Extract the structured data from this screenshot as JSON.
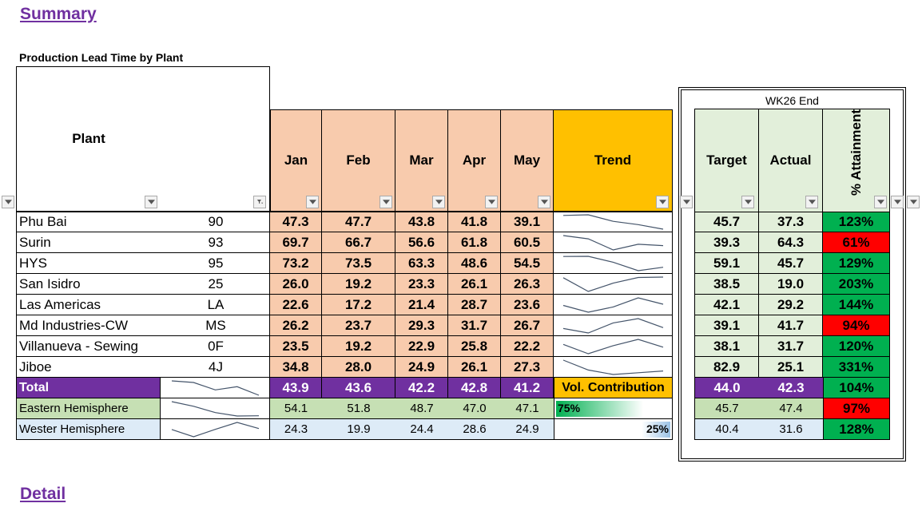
{
  "summary_heading": "Summary",
  "detail_heading": "Detail",
  "table_title": "Production Lead Time by Plant",
  "headers": {
    "plant": "Plant",
    "months": [
      "Jan",
      "Feb",
      "Mar",
      "Apr",
      "May"
    ],
    "trend": "Trend",
    "group": "WK26 End",
    "target": "Target",
    "actual": "Actual",
    "attainment": "% Attainment"
  },
  "rows": [
    {
      "plant": "Phu Bai",
      "code": "90",
      "values": [
        "47.3",
        "47.7",
        "43.8",
        "41.8",
        "39.1"
      ],
      "target": "45.7",
      "actual": "37.3",
      "attainment": "123%",
      "status": "good"
    },
    {
      "plant": "Surin",
      "code": "93",
      "values": [
        "69.7",
        "66.7",
        "56.6",
        "61.8",
        "60.5"
      ],
      "target": "39.3",
      "actual": "64.3",
      "attainment": "61%",
      "status": "bad"
    },
    {
      "plant": "HYS",
      "code": "95",
      "values": [
        "73.2",
        "73.5",
        "63.3",
        "48.6",
        "54.5"
      ],
      "target": "59.1",
      "actual": "45.7",
      "attainment": "129%",
      "status": "good"
    },
    {
      "plant": "San Isidro",
      "code": "25",
      "values": [
        "26.0",
        "19.2",
        "23.3",
        "26.1",
        "26.3"
      ],
      "target": "38.5",
      "actual": "19.0",
      "attainment": "203%",
      "status": "good"
    },
    {
      "plant": "Las Americas",
      "code": "LA",
      "values": [
        "22.6",
        "17.2",
        "21.4",
        "28.7",
        "23.6"
      ],
      "target": "42.1",
      "actual": "29.2",
      "attainment": "144%",
      "status": "good"
    },
    {
      "plant": "Md Industries-CW",
      "code": "MS",
      "values": [
        "26.2",
        "23.7",
        "29.3",
        "31.7",
        "26.7"
      ],
      "target": "39.1",
      "actual": "41.7",
      "attainment": "94%",
      "status": "bad"
    },
    {
      "plant": "Villanueva - Sewing",
      "code": "0F",
      "values": [
        "23.5",
        "19.2",
        "22.9",
        "25.8",
        "22.2"
      ],
      "target": "38.1",
      "actual": "31.7",
      "attainment": "120%",
      "status": "good"
    },
    {
      "plant": "Jiboe",
      "code": "4J",
      "values": [
        "34.8",
        "28.0",
        "24.9",
        "26.1",
        "27.3"
      ],
      "target": "82.9",
      "actual": "25.1",
      "attainment": "331%",
      "status": "good"
    }
  ],
  "total": {
    "label": "Total",
    "values": [
      "43.9",
      "43.6",
      "42.2",
      "42.8",
      "41.2"
    ],
    "vol_label": "Vol. Contribution",
    "target": "44.0",
    "actual": "42.3",
    "attainment": "104%",
    "status": "good"
  },
  "east": {
    "label": "Eastern Hemisphere",
    "values": [
      "54.1",
      "51.8",
      "48.7",
      "47.0",
      "47.1"
    ],
    "contribution": "75%",
    "contribution_fraction": 0.75,
    "target": "45.7",
    "actual": "47.4",
    "attainment": "97%",
    "status": "bad"
  },
  "west": {
    "label": "Wester Hemisphere",
    "values": [
      "24.3",
      "19.9",
      "24.4",
      "28.6",
      "24.9"
    ],
    "contribution": "25%",
    "contribution_fraction": 0.25,
    "target": "40.4",
    "actual": "31.6",
    "attainment": "128%",
    "status": "good"
  },
  "colors": {
    "purple": "#7030a0",
    "peach": "#f8cbad",
    "gold": "#ffc000",
    "light_green": "#e2efda",
    "good": "#00b050",
    "bad": "#ff0000",
    "sparkline": "#44546a"
  }
}
